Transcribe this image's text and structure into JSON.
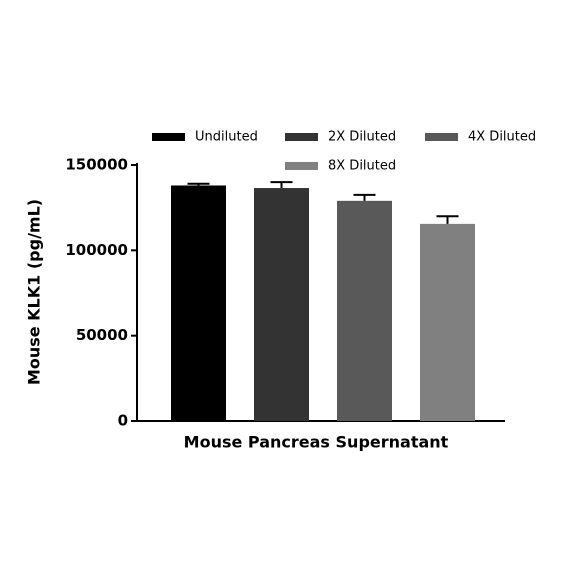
{
  "chart_data": {
    "type": "bar",
    "categories": [
      "Mouse Pancreas Supernatant"
    ],
    "y_label": "Mouse KLK1 (pg/mL)",
    "ylim": [
      0,
      150000
    ],
    "yticks": [
      0,
      50000,
      100000,
      150000
    ],
    "series": [
      {
        "name": "Undiluted",
        "color": "#000000",
        "values": [
          138000
        ],
        "errors": [
          1000
        ]
      },
      {
        "name": "2X Diluted",
        "color": "#333333",
        "values": [
          136500
        ],
        "errors": [
          3500
        ]
      },
      {
        "name": "4X Diluted",
        "color": "#595959",
        "values": [
          129000
        ],
        "errors": [
          3500
        ]
      },
      {
        "name": "8X Diluted",
        "color": "#808080",
        "values": [
          115500
        ],
        "errors": [
          4500
        ]
      }
    ]
  }
}
